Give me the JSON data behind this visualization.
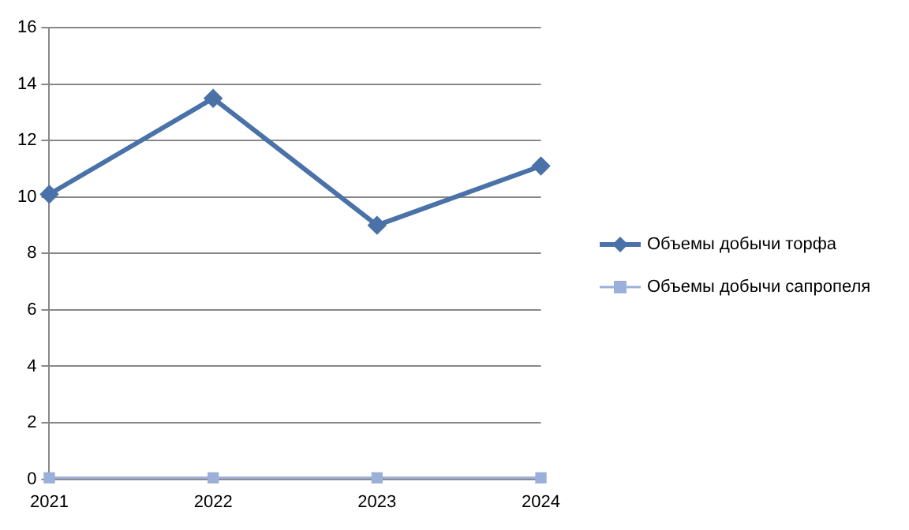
{
  "chart_data": {
    "type": "line",
    "categories": [
      "2021",
      "2022",
      "2023",
      "2024"
    ],
    "series": [
      {
        "name": "Объемы добычи торфа",
        "color": "#4a72a8",
        "values": [
          10.1,
          13.5,
          9.0,
          11.1
        ],
        "marker": "diamond"
      },
      {
        "name": "Объемы добычи сапропеля",
        "color": "#9bb0d8",
        "values": [
          0.05,
          0.05,
          0.05,
          0.05
        ],
        "marker": "square"
      }
    ],
    "ylim": [
      0,
      16
    ],
    "yticks": [
      0,
      2,
      4,
      6,
      8,
      10,
      12,
      14,
      16
    ],
    "grid": "y",
    "legend": "right"
  }
}
